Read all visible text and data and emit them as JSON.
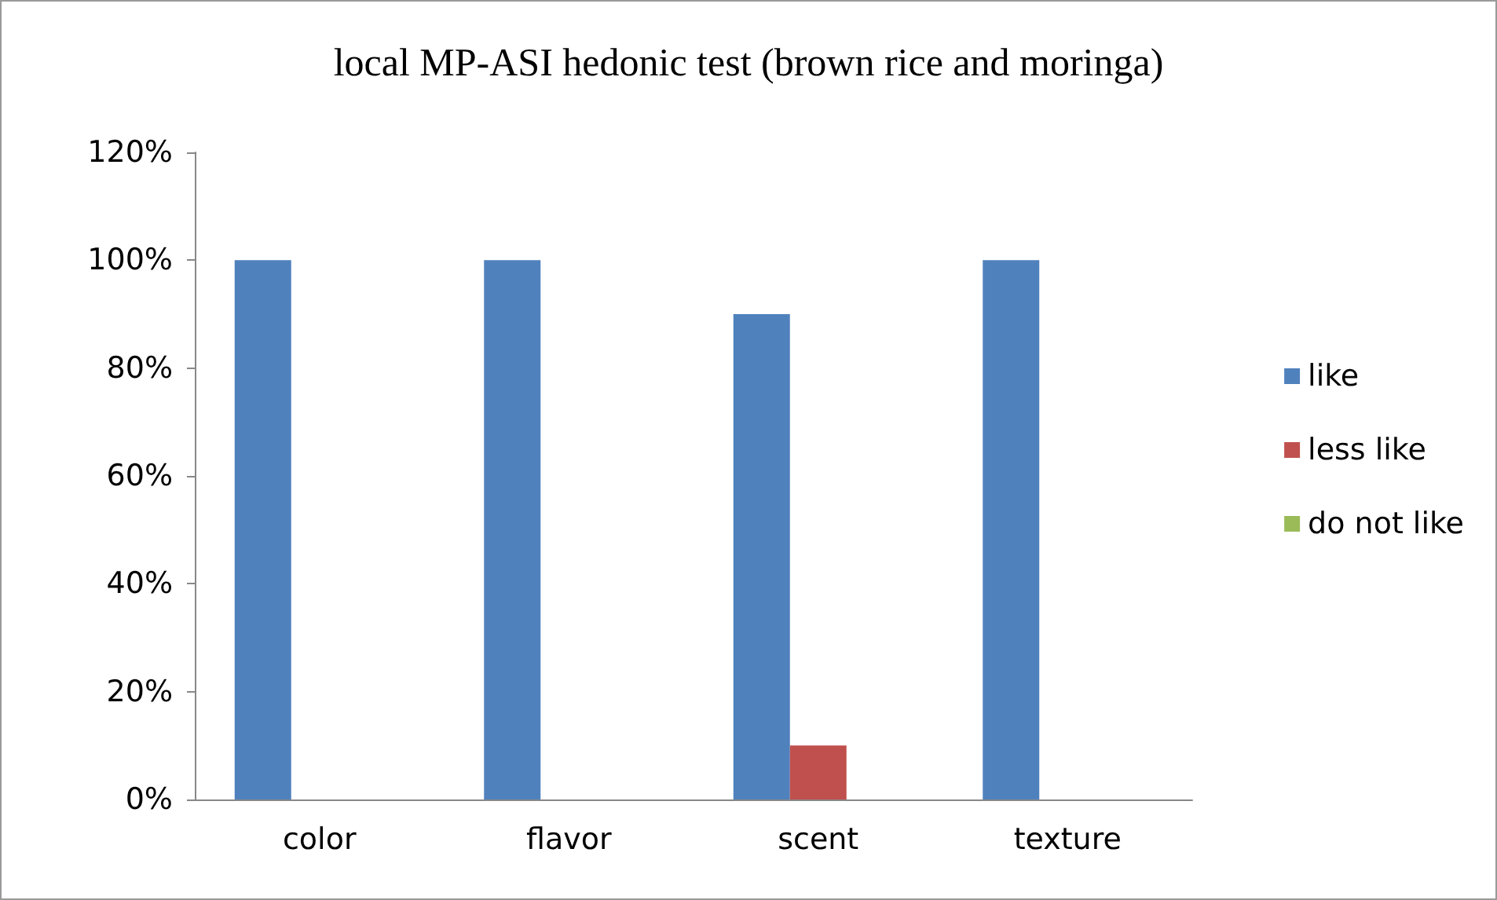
{
  "chart_data": {
    "type": "bar",
    "title": "local MP-ASI hedonic test (brown rice and moringa)",
    "categories": [
      "color",
      "flavor",
      "scent",
      "texture"
    ],
    "series": [
      {
        "name": "like",
        "color": "#4f81bd",
        "values": [
          100,
          100,
          90,
          100
        ]
      },
      {
        "name": "less like",
        "color": "#c0504d",
        "values": [
          0,
          0,
          10,
          0
        ]
      },
      {
        "name": "do not like",
        "color": "#9bbb59",
        "values": [
          0,
          0,
          0,
          0
        ]
      }
    ],
    "ylim": [
      0,
      120
    ],
    "yticks": [
      {
        "value": 0,
        "label": "0%"
      },
      {
        "value": 20,
        "label": "20%"
      },
      {
        "value": 40,
        "label": "40%"
      },
      {
        "value": 60,
        "label": "60%"
      },
      {
        "value": 80,
        "label": "80%"
      },
      {
        "value": 100,
        "label": "100%"
      },
      {
        "value": 120,
        "label": "120%"
      }
    ],
    "grid": false,
    "legend": "right"
  }
}
